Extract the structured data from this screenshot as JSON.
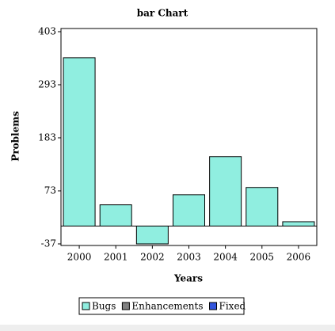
{
  "chart_data": {
    "type": "bar",
    "title": "bar Chart",
    "xlabel": "Years",
    "ylabel": "Problems",
    "categories": [
      "2000",
      "2001",
      "2002",
      "2003",
      "2004",
      "2005",
      "2006"
    ],
    "series": [
      {
        "name": "Bugs",
        "color": "#90eee0",
        "values": [
          349,
          44,
          -37,
          65,
          144,
          80,
          9
        ]
      },
      {
        "name": "Enhancements",
        "color": "#808080",
        "values": [
          null,
          null,
          null,
          null,
          null,
          null,
          null
        ]
      },
      {
        "name": "Fixed",
        "color": "#3355dd",
        "values": [
          null,
          null,
          null,
          null,
          null,
          null,
          null
        ]
      }
    ],
    "ylim": [
      -37,
      403
    ],
    "yticks": [
      -37,
      73,
      183,
      293,
      403
    ],
    "legend": "bottom"
  }
}
